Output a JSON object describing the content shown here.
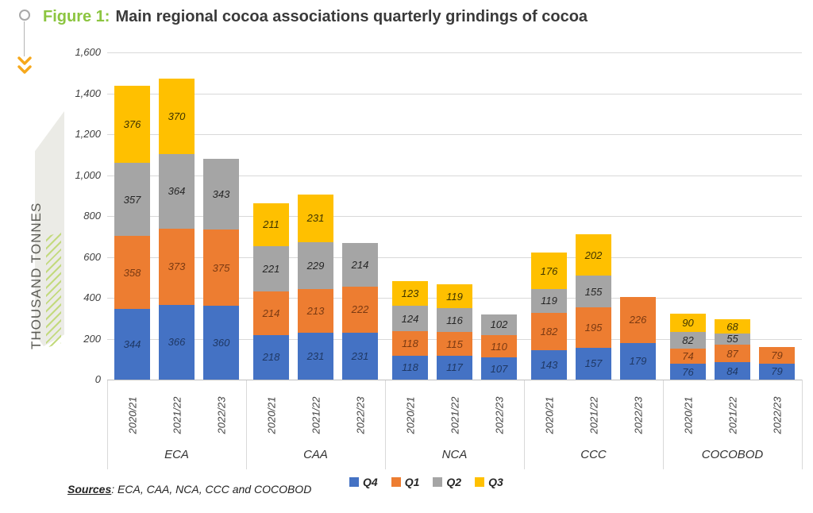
{
  "figure": {
    "label": "Figure 1:",
    "title": "Main regional cocoa associations quarterly grindings of cocoa"
  },
  "sources": {
    "label": "Sources",
    "text": ": ECA, CAA, NCA, CCC and COCOBOD"
  },
  "decor": {
    "accent_green": "#8cc540",
    "arrow_orange": "#f6a81c"
  },
  "chart_data": {
    "type": "bar",
    "stacked": true,
    "title": "Main regional cocoa associations quarterly grindings of cocoa",
    "xlabel": "",
    "ylabel": "THOUSAND TONNES",
    "ylim": [
      0,
      1600
    ],
    "ytick_step": 200,
    "yticks": [
      "0",
      "200",
      "400",
      "600",
      "800",
      "1,000",
      "1,200",
      "1,400",
      "1,600"
    ],
    "grid": true,
    "legend_position": "bottom",
    "groups": [
      "ECA",
      "CAA",
      "NCA",
      "CCC",
      "COCOBOD"
    ],
    "x_categories": [
      "2020/21",
      "2021/22",
      "2022/23"
    ],
    "series": [
      {
        "name": "Q4",
        "color": "#4472C4",
        "label_color": "#1F3864",
        "values": {
          "ECA": [
            344,
            366,
            360
          ],
          "CAA": [
            218,
            231,
            231
          ],
          "NCA": [
            118,
            117,
            107
          ],
          "CCC": [
            143,
            157,
            179
          ],
          "COCOBOD": [
            76,
            84,
            79
          ]
        }
      },
      {
        "name": "Q1",
        "color": "#ED7D31",
        "label_color": "#7B3A12",
        "values": {
          "ECA": [
            358,
            373,
            375
          ],
          "CAA": [
            214,
            213,
            222
          ],
          "NCA": [
            118,
            115,
            110
          ],
          "CCC": [
            182,
            195,
            226
          ],
          "COCOBOD": [
            74,
            87,
            79
          ]
        }
      },
      {
        "name": "Q2",
        "color": "#A5A5A5",
        "label_color": "#262626",
        "values": {
          "ECA": [
            357,
            364,
            343
          ],
          "CAA": [
            221,
            229,
            214
          ],
          "NCA": [
            124,
            116,
            102
          ],
          "CCC": [
            119,
            155,
            null
          ],
          "COCOBOD": [
            82,
            55,
            null
          ]
        }
      },
      {
        "name": "Q3",
        "color": "#FFC000",
        "label_color": "#3F3400",
        "values": {
          "ECA": [
            376,
            370,
            null
          ],
          "CAA": [
            211,
            231,
            null
          ],
          "NCA": [
            123,
            119,
            null
          ],
          "CCC": [
            176,
            202,
            null
          ],
          "COCOBOD": [
            90,
            68,
            null
          ]
        }
      }
    ]
  }
}
